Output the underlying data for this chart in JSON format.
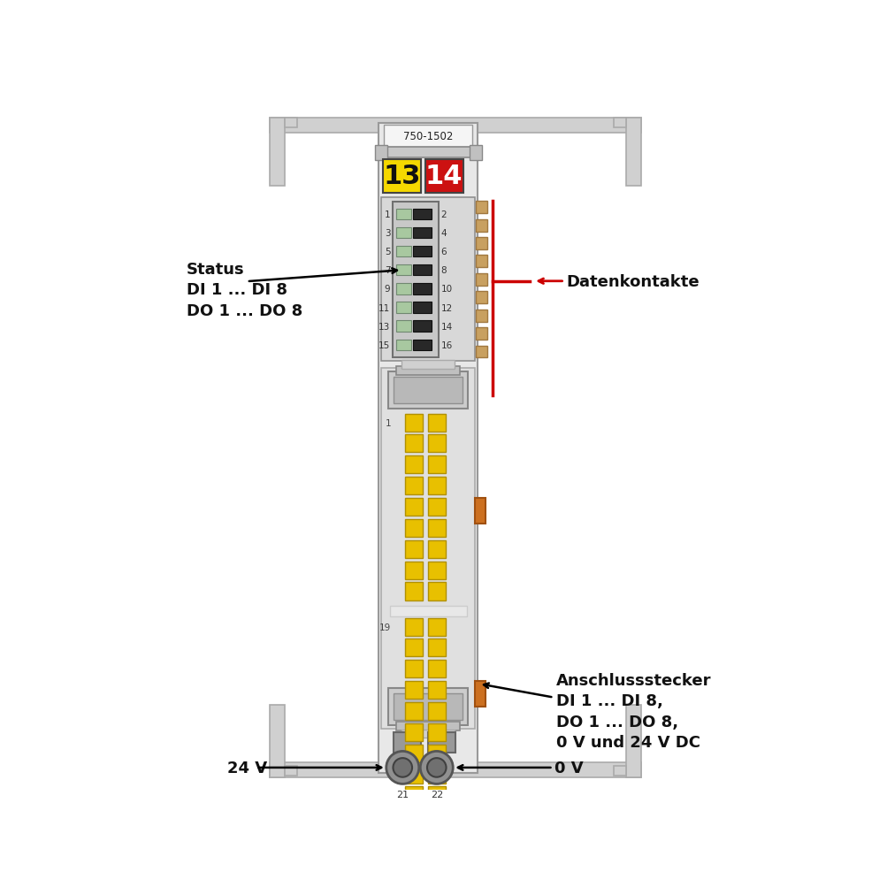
{
  "bg": "#ffffff",
  "rail_color": "#d0d0d0",
  "rail_outline": "#aaaaaa",
  "module_bg": "#e8e8e8",
  "module_outline": "#999999",
  "module_inner_bg": "#f0f0f0",
  "label_text": "750-1502",
  "badge_13_color": "#f5d800",
  "badge_14_color": "#cc1111",
  "badge_13_text": "13",
  "badge_14_text": "14",
  "led_green": "#a8c8a0",
  "led_black": "#282828",
  "contact_tan": "#c8a060",
  "contact_outline": "#a07840",
  "red_line": "#cc0000",
  "yellow_pin": "#e8c000",
  "yellow_pin_outline": "#b09000",
  "orange_tab": "#cc7020",
  "gray_terminal": "#909090",
  "dark_terminal": "#606060",
  "connector_gray": "#c8c8c8",
  "connector_dark": "#aaaaaa",
  "plug_light": "#d8d8d8",
  "status_label": "Status\nDI 1 ... DI 8\nDO 1 ... DO 8",
  "datenkontakte_label": "Datenkontakte",
  "anschlussstecker_label": "Anschlussstecker\nDI 1 ... DI 8,\nDO 1 ... DO 8,\n0 V und 24 V DC",
  "v24_label": "24 V",
  "v0_label": "0 V",
  "anno_fontsize": 13,
  "small_fontsize": 7.5
}
